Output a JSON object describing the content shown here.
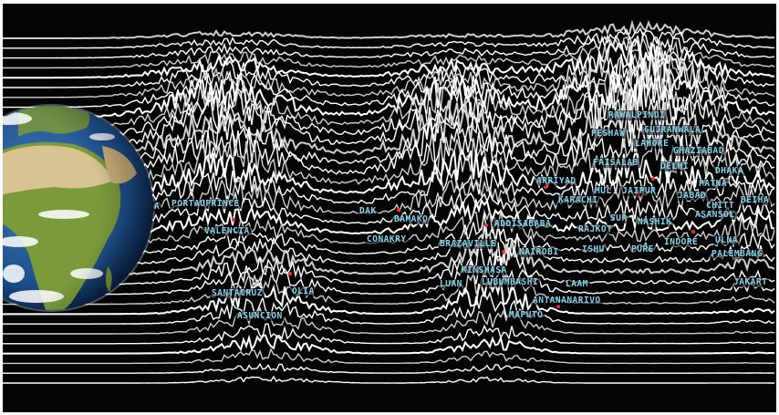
{
  "colors": {
    "background": "#040404",
    "lines": "#ffffff",
    "labels": "#7fd6ee",
    "markers": "#ff2a2a",
    "ocean": "#1e4f8e",
    "land_green": "#7a9a3c",
    "land_desert": "#d8c391"
  },
  "globe": {
    "icon": "earth-globe-icon"
  },
  "cities": [
    {
      "id": "a",
      "text": "A"
    },
    {
      "id": "portauprince",
      "text": "PORTAUPRINCE"
    },
    {
      "id": "valencia",
      "text": "VALENCIA"
    },
    {
      "id": "santacruz",
      "text": "SANTACRUZ"
    },
    {
      "id": "olia",
      "text": "OLIA"
    },
    {
      "id": "asuncion",
      "text": "ASUNCION"
    },
    {
      "id": "dak",
      "text": "DAK"
    },
    {
      "id": "bamako",
      "text": "BAMAKO"
    },
    {
      "id": "conakry",
      "text": "CONAKRY"
    },
    {
      "id": "brazaville",
      "text": "BRAZAVILLE"
    },
    {
      "id": "addisababa",
      "text": "ADDISABABA"
    },
    {
      "id": "nairobi",
      "text": "NAIROBI"
    },
    {
      "id": "kinshasa",
      "text": "KINSHASA"
    },
    {
      "id": "luan",
      "text": "LUAN"
    },
    {
      "id": "lubumbashi",
      "text": "LUBUMBASHI"
    },
    {
      "id": "laam",
      "text": "LAAM"
    },
    {
      "id": "antananarivo",
      "text": "ANTANANARIVO"
    },
    {
      "id": "maputo",
      "text": "MAPUTO"
    },
    {
      "id": "rawalpindi",
      "text": "RAWALPINDI"
    },
    {
      "id": "peshaw",
      "text": "PESHAW"
    },
    {
      "id": "gujranwala",
      "text": "GUJRANWALA"
    },
    {
      "id": "lahore",
      "text": "LAHORE"
    },
    {
      "id": "ghaziabad",
      "text": "GHAZIABAD"
    },
    {
      "id": "faisalab",
      "text": "FAISALAB"
    },
    {
      "id": "delhi",
      "text": "DELHI"
    },
    {
      "id": "dhaka",
      "text": "DHAKA"
    },
    {
      "id": "arriyad",
      "text": "ARRIYAD"
    },
    {
      "id": "mul",
      "text": "MUL"
    },
    {
      "id": "jaipur",
      "text": "JAIPUR"
    },
    {
      "id": "patna",
      "text": "PATNA"
    },
    {
      "id": "karachi",
      "text": "KARACHI"
    },
    {
      "id": "jabad",
      "text": "JABAD"
    },
    {
      "id": "chitt",
      "text": "CHITT"
    },
    {
      "id": "beiha",
      "text": "BEIHA"
    },
    {
      "id": "sur",
      "text": "SUR"
    },
    {
      "id": "nashik",
      "text": "NASHIK"
    },
    {
      "id": "asansol",
      "text": "ASANSOL"
    },
    {
      "id": "rajkot",
      "text": "RAJKOT"
    },
    {
      "id": "ishu",
      "text": "ISHU"
    },
    {
      "id": "pure",
      "text": "PURE"
    },
    {
      "id": "indore",
      "text": "INDORE"
    },
    {
      "id": "ulna",
      "text": "ULNA"
    },
    {
      "id": "palembang",
      "text": "PALEMBANG"
    },
    {
      "id": "jakart",
      "text": "JAKART"
    }
  ]
}
